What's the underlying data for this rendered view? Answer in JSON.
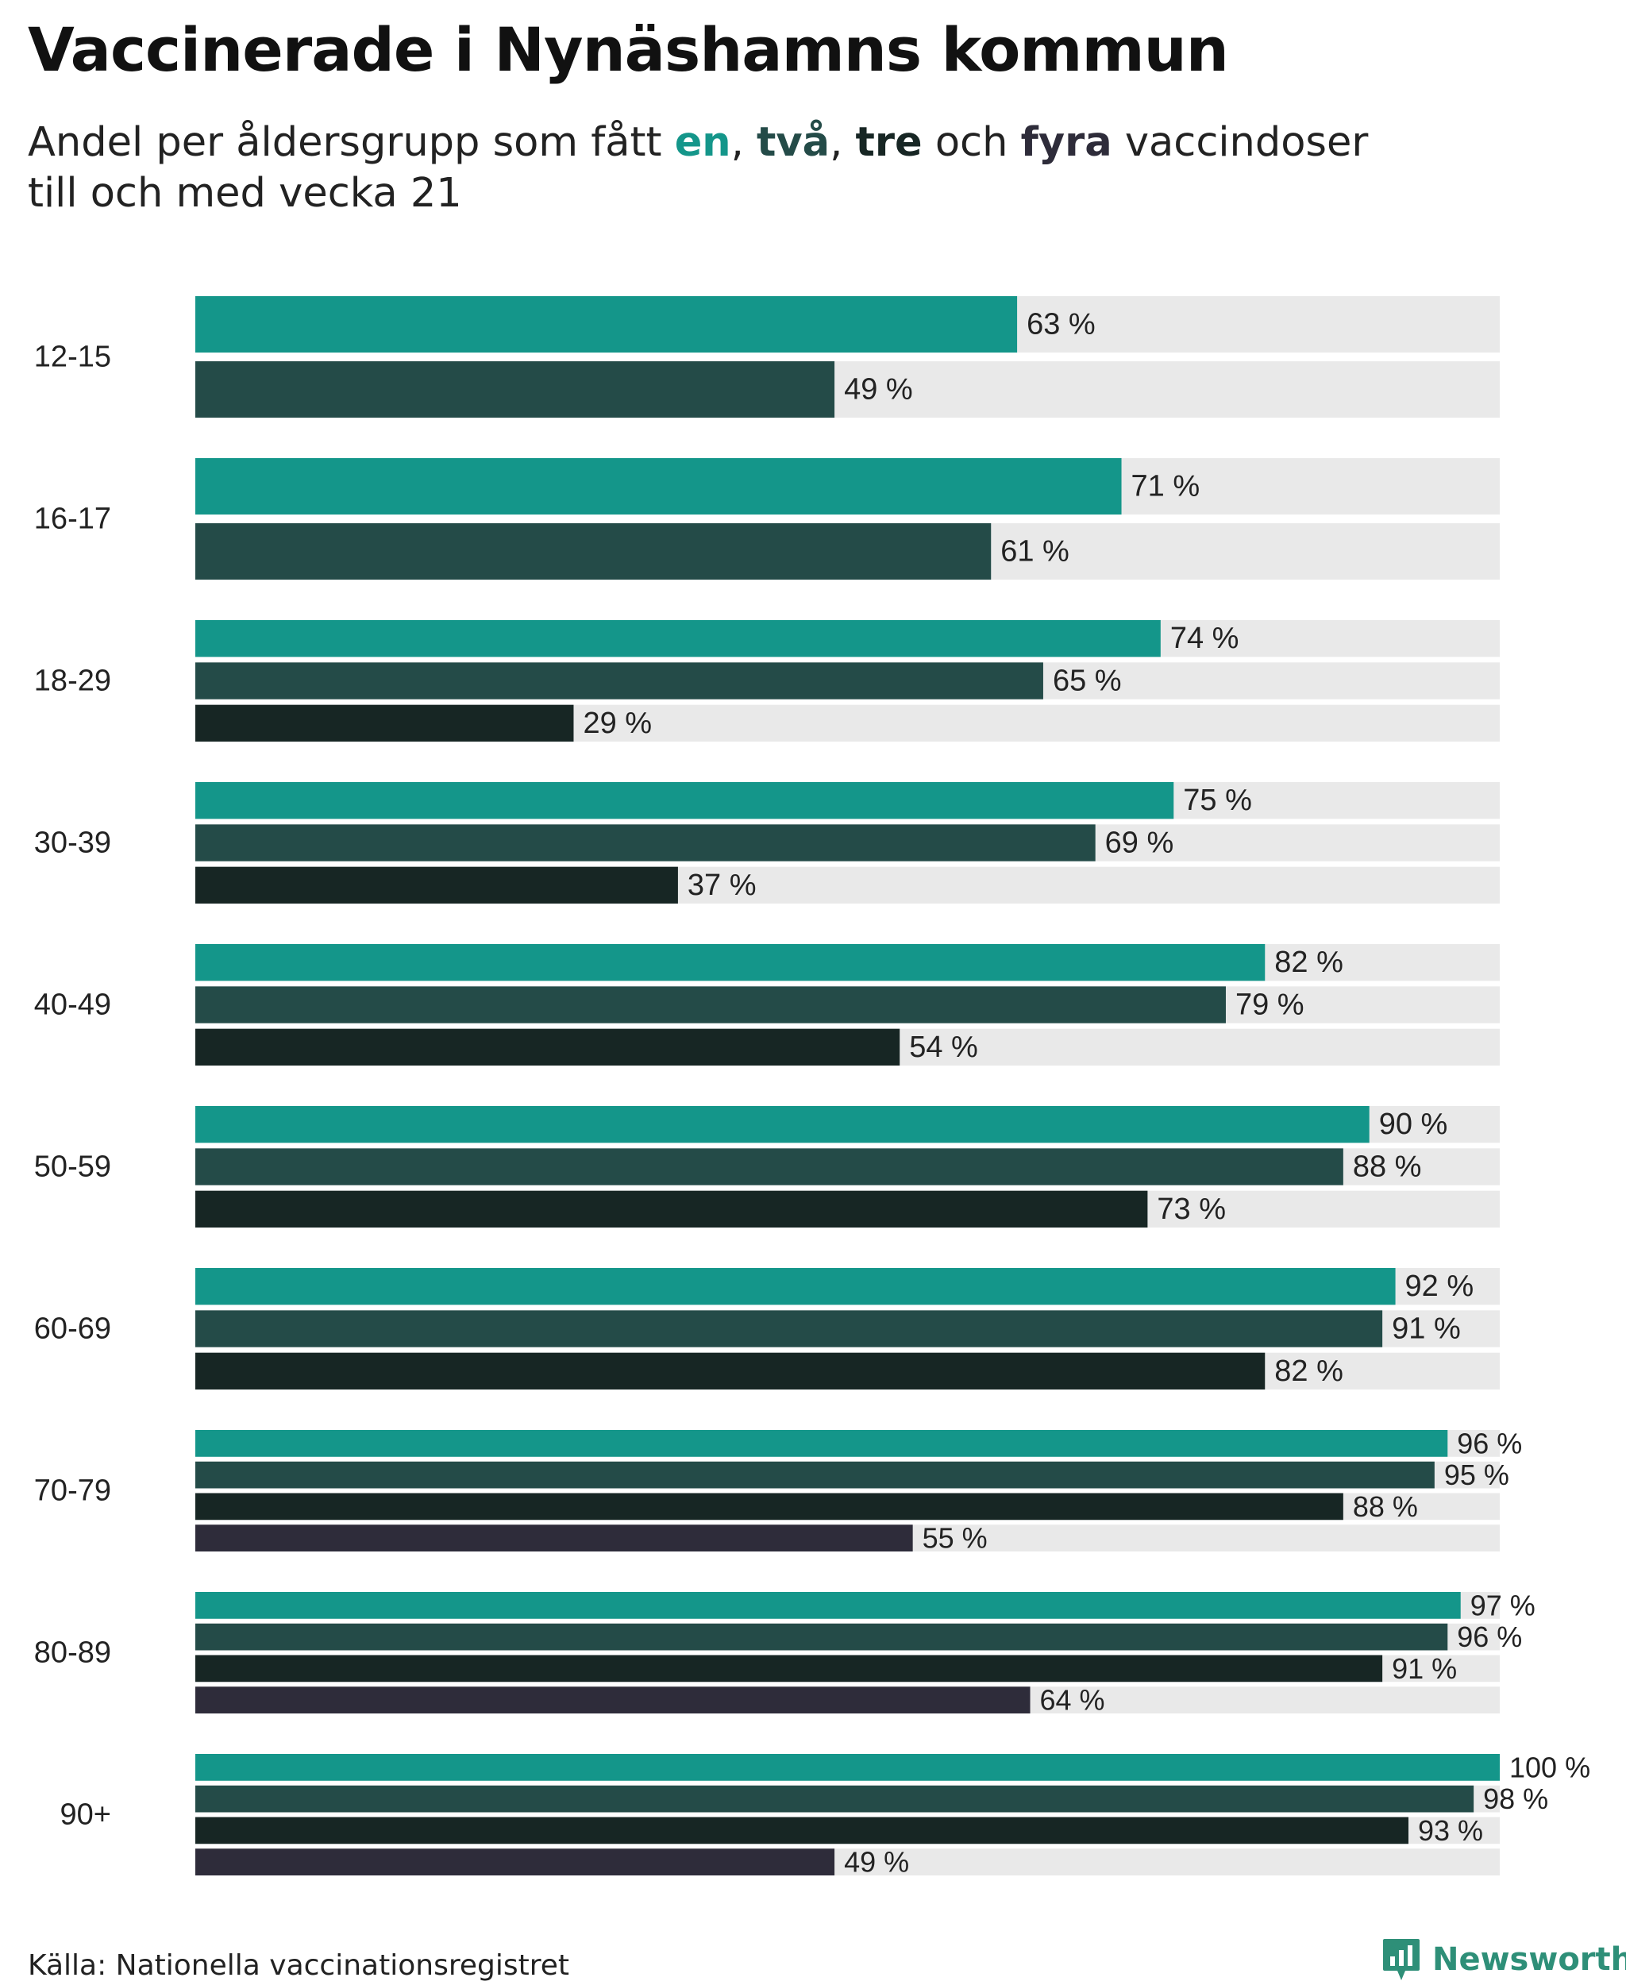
{
  "title": "Vaccinerade i Nynäshamns kommun",
  "subtitle": {
    "prefix": "Andel per åldersgrupp som fått ",
    "kw_one": "en",
    "sep1": ", ",
    "kw_two": "två",
    "sep2": ", ",
    "kw_three": "tre",
    "sep3": " och ",
    "kw_four": "fyra",
    "suffix_line1": " vaccindoser",
    "line2": "till och med vecka 21"
  },
  "colors": {
    "one": "#14968a",
    "two": "#244b48",
    "three": "#172624",
    "four": "#2e2c3a",
    "track": "#e9e9e9",
    "brand": "#2e8f78"
  },
  "chart_data": {
    "type": "bar",
    "orientation": "horizontal",
    "title": "Vaccinerade i Nynäshamns kommun",
    "xlim": [
      0,
      100
    ],
    "value_suffix": " %",
    "categories": [
      "12-15",
      "16-17",
      "18-29",
      "30-39",
      "40-49",
      "50-59",
      "60-69",
      "70-79",
      "80-89",
      "90+"
    ],
    "series": [
      {
        "name": "en",
        "color_key": "one",
        "values": [
          63,
          71,
          74,
          75,
          82,
          90,
          92,
          96,
          97,
          100
        ]
      },
      {
        "name": "två",
        "color_key": "two",
        "values": [
          49,
          61,
          65,
          69,
          79,
          88,
          91,
          95,
          96,
          98
        ]
      },
      {
        "name": "tre",
        "color_key": "three",
        "values": [
          null,
          null,
          29,
          37,
          54,
          73,
          82,
          88,
          91,
          93
        ]
      },
      {
        "name": "fyra",
        "color_key": "four",
        "values": [
          null,
          null,
          null,
          null,
          null,
          null,
          null,
          55,
          64,
          49
        ]
      }
    ]
  },
  "footer": {
    "source": "Källa: Nationella vaccinationsregistret",
    "brand": "Newsworthy",
    "brand_icon": "newsworthy-logo-icon"
  }
}
